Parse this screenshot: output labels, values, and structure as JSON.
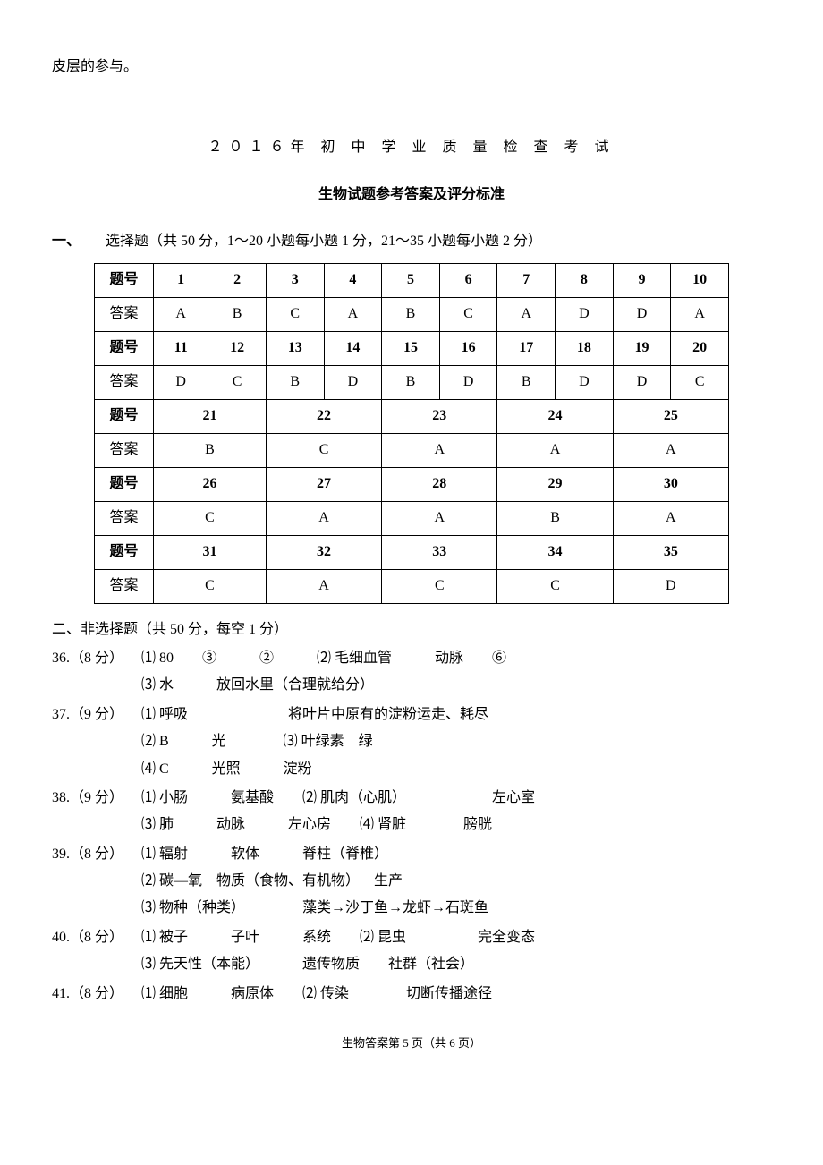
{
  "fragment_top": "皮层的参与。",
  "title_line1": "２０１６年 初 中 学 业 质 量 检 查 考 试",
  "title_line2": "生物试题参考答案及评分标准",
  "section1": {
    "label": "一、",
    "text": "选择题（共 50 分，1～20 小题每小题 1 分，21～35 小题每小题 2 分）"
  },
  "table": {
    "row_header_q": "题号",
    "row_header_a": "答案",
    "block1_q": [
      "1",
      "2",
      "3",
      "4",
      "5",
      "6",
      "7",
      "8",
      "9",
      "10"
    ],
    "block1_a": [
      "A",
      "B",
      "C",
      "A",
      "B",
      "C",
      "A",
      "D",
      "D",
      "A"
    ],
    "block2_q": [
      "11",
      "12",
      "13",
      "14",
      "15",
      "16",
      "17",
      "18",
      "19",
      "20"
    ],
    "block2_a": [
      "D",
      "C",
      "B",
      "D",
      "B",
      "D",
      "B",
      "D",
      "D",
      "C"
    ],
    "block3_q": [
      "21",
      "22",
      "23",
      "24",
      "25"
    ],
    "block3_a": [
      "B",
      "C",
      "A",
      "A",
      "A"
    ],
    "block4_q": [
      "26",
      "27",
      "28",
      "29",
      "30"
    ],
    "block4_a": [
      "C",
      "A",
      "A",
      "B",
      "A"
    ],
    "block5_q": [
      "31",
      "32",
      "33",
      "34",
      "35"
    ],
    "block5_a": [
      "C",
      "A",
      "C",
      "C",
      "D"
    ]
  },
  "section2_heading": "二、非选择题（共 50 分，每空 1 分）",
  "q36": {
    "num": "36.（8 分）",
    "l1": "⑴ 80  ③   ②   ⑵ 毛细血管   动脉  ⑥",
    "l2": "⑶ 水   放回水里（合理就给分）"
  },
  "q37": {
    "num": "37.（9 分）",
    "l1": "⑴ 呼吸       将叶片中原有的淀粉运走、耗尽",
    "l2": "⑵ B   光    ⑶ 叶绿素 绿",
    "l3": "⑷ C   光照   淀粉"
  },
  "q38": {
    "num": "38.（9 分）",
    "l1": "⑴ 小肠   氨基酸  ⑵ 肌肉（心肌）      左心室",
    "l2": "⑶ 肺   动脉   左心房  ⑷ 肾脏    膀胱"
  },
  "q39": {
    "num": "39.（8 分）",
    "l1": "⑴ 辐射   软体   脊柱（脊椎）",
    "l2": "⑵ 碳—氧 物质（食物、有机物） 生产",
    "l3": "⑶ 物种（种类）    藻类→沙丁鱼→龙虾→石斑鱼"
  },
  "q40": {
    "num": "40.（8 分）",
    "l1": "⑴ 被子   子叶   系统  ⑵ 昆虫     完全变态",
    "l2": "⑶ 先天性（本能）   遗传物质  社群（社会）"
  },
  "q41": {
    "num": "41.（8 分）",
    "l1": "⑴ 细胞   病原体  ⑵ 传染    切断传播途径"
  },
  "footer": "生物答案第 5 页（共 6 页）"
}
